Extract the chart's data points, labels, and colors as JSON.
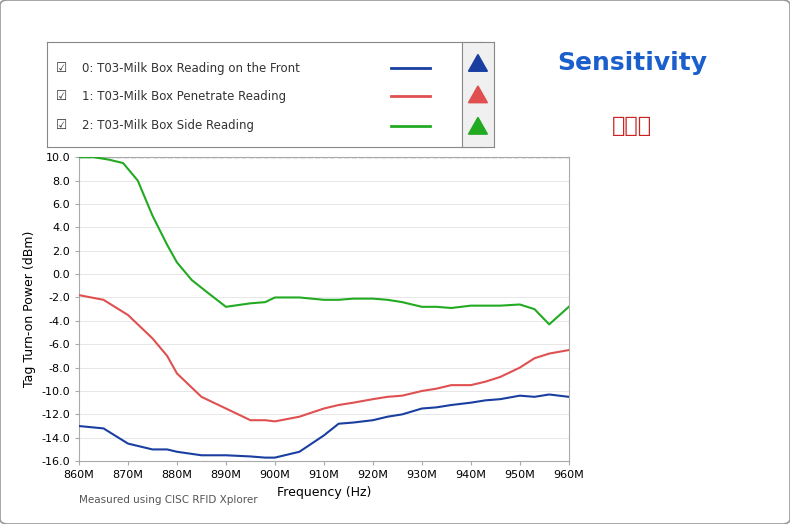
{
  "title_en": "Sensitivity",
  "title_cn": "灵敏度",
  "xlabel": "Frequency (Hz)",
  "ylabel": "Tag Turn-on Power (dBm)",
  "footnote": "Measured using CISC RFID Xplorer",
  "xlim": [
    860,
    960
  ],
  "ylim": [
    -16,
    10
  ],
  "yticks": [
    -16,
    -14,
    -12,
    -10,
    -8,
    -6,
    -4,
    -2,
    0,
    2,
    4,
    6,
    8,
    10
  ],
  "xtick_labels": [
    "860M",
    "870M",
    "880M",
    "890M",
    "900M",
    "910M",
    "920M",
    "930M",
    "940M",
    "950M",
    "960M"
  ],
  "xtick_values": [
    860,
    870,
    880,
    890,
    900,
    910,
    920,
    930,
    940,
    950,
    960
  ],
  "legend": [
    "0: T03-Milk Box Reading on the Front",
    "1: T03-Milk Box Penetrate Reading",
    "2: T03-Milk Box Side Reading"
  ],
  "line_colors": [
    "#1a3fa0",
    "#e05050",
    "#22aa22"
  ],
  "dashed_line_y": 10,
  "series": {
    "blue": {
      "x": [
        860,
        865,
        870,
        875,
        878,
        880,
        885,
        890,
        895,
        898,
        900,
        905,
        910,
        913,
        916,
        920,
        923,
        926,
        930,
        933,
        936,
        940,
        943,
        946,
        950,
        953,
        956,
        960
      ],
      "y": [
        -13.0,
        -13.2,
        -14.5,
        -15.0,
        -15.0,
        -15.2,
        -15.5,
        -15.5,
        -15.6,
        -15.7,
        -15.7,
        -15.2,
        -13.8,
        -12.8,
        -12.7,
        -12.5,
        -12.2,
        -12.0,
        -11.5,
        -11.4,
        -11.2,
        -11.0,
        -10.8,
        -10.7,
        -10.4,
        -10.5,
        -10.3,
        -10.5
      ]
    },
    "red": {
      "x": [
        860,
        865,
        870,
        875,
        878,
        880,
        885,
        890,
        895,
        898,
        900,
        905,
        910,
        913,
        916,
        920,
        923,
        926,
        930,
        933,
        936,
        940,
        943,
        946,
        950,
        953,
        956,
        960
      ],
      "y": [
        -1.8,
        -2.2,
        -3.5,
        -5.5,
        -7.0,
        -8.5,
        -10.5,
        -11.5,
        -12.5,
        -12.5,
        -12.6,
        -12.2,
        -11.5,
        -11.2,
        -11.0,
        -10.7,
        -10.5,
        -10.4,
        -10.0,
        -9.8,
        -9.5,
        -9.5,
        -9.2,
        -8.8,
        -8.0,
        -7.2,
        -6.8,
        -6.5
      ]
    },
    "green": {
      "x": [
        860,
        863,
        866,
        869,
        872,
        875,
        878,
        880,
        883,
        886,
        890,
        895,
        898,
        900,
        905,
        910,
        913,
        916,
        920,
        923,
        926,
        930,
        933,
        936,
        940,
        943,
        946,
        950,
        953,
        956,
        960
      ],
      "y": [
        10.0,
        10.0,
        9.8,
        9.5,
        8.0,
        5.0,
        2.5,
        1.0,
        -0.5,
        -1.5,
        -2.8,
        -2.5,
        -2.4,
        -2.0,
        -2.0,
        -2.2,
        -2.2,
        -2.1,
        -2.1,
        -2.2,
        -2.4,
        -2.8,
        -2.8,
        -2.9,
        -2.7,
        -2.7,
        -2.7,
        -2.6,
        -3.0,
        -4.3,
        -2.8
      ]
    }
  },
  "bg_color": "#ffffff",
  "plot_bg_color": "#ffffff",
  "border_color": "#aaaaaa",
  "title_en_color": "#1a5fcc",
  "title_cn_color": "#cc2222"
}
